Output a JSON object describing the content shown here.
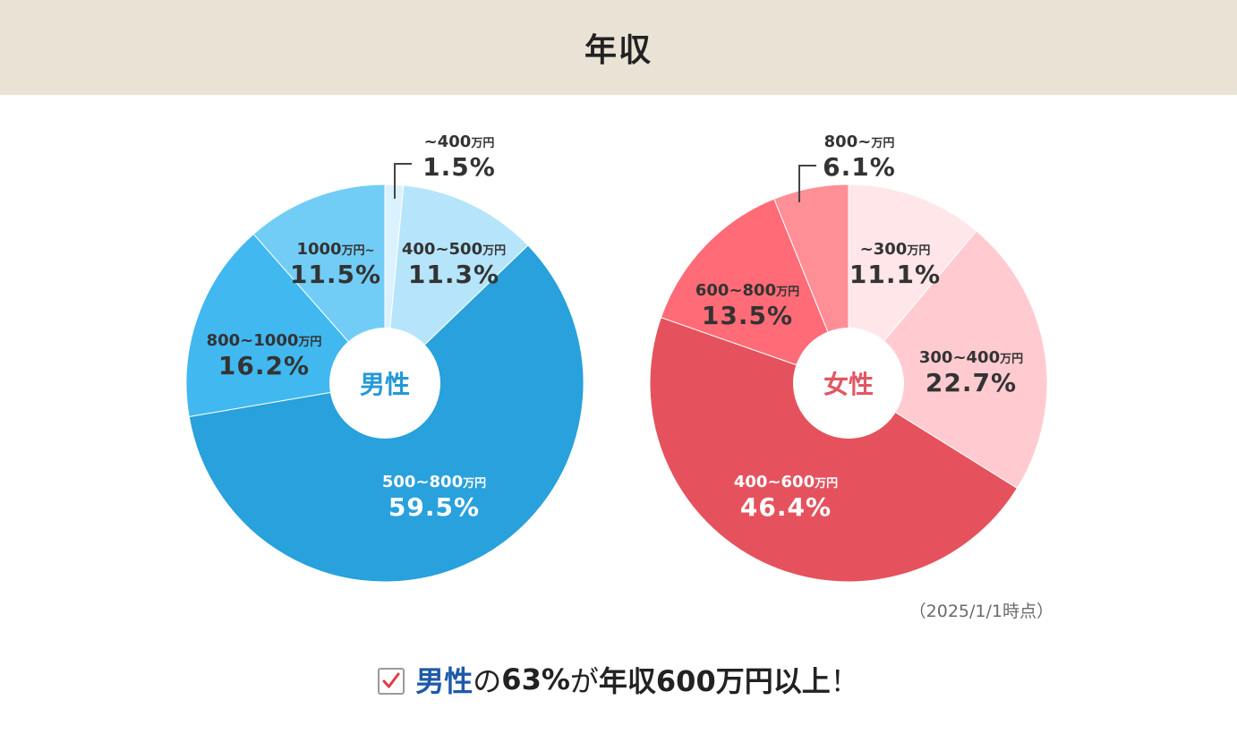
{
  "header": {
    "title": "年収"
  },
  "colors": {
    "header_bg": "#eae3d5",
    "men_center_text": "#2399d6",
    "women_center_text": "#e05763",
    "highlight_text": "#1e5aa8",
    "check_mark": "#e23a4a"
  },
  "chart_data": [
    {
      "type": "pie",
      "center_label": "男性",
      "slices": [
        {
          "range": "~400",
          "unit": "万円",
          "value": 1.5,
          "pct": "1.5%",
          "color": "#daf2fd",
          "label_color": "#333333"
        },
        {
          "range": "400~500",
          "unit": "万円",
          "value": 11.3,
          "pct": "11.3%",
          "color": "#b6e5fb",
          "label_color": "#333333"
        },
        {
          "range": "500~800",
          "unit": "万円",
          "value": 59.5,
          "pct": "59.5%",
          "color": "#28a1dc",
          "label_color": "#ffffff"
        },
        {
          "range": "800~1000",
          "unit": "万円",
          "value": 16.2,
          "pct": "16.2%",
          "color": "#41b8f0",
          "label_color": "#333333"
        },
        {
          "range": "1000",
          "unit": "万円~",
          "value": 11.5,
          "pct": "11.5%",
          "color": "#72cdf6",
          "label_color": "#333333"
        }
      ]
    },
    {
      "type": "pie",
      "center_label": "女性",
      "slices": [
        {
          "range": "~300",
          "unit": "万円",
          "value": 11.1,
          "pct": "11.1%",
          "color": "#ffe6e9",
          "label_color": "#333333"
        },
        {
          "range": "300~400",
          "unit": "万円",
          "value": 22.7,
          "pct": "22.7%",
          "color": "#ffcbd1",
          "label_color": "#333333"
        },
        {
          "range": "400~600",
          "unit": "万円",
          "value": 46.4,
          "pct": "46.4%",
          "color": "#e5525d",
          "label_color": "#ffffff"
        },
        {
          "range": "600~800",
          "unit": "万円",
          "value": 13.5,
          "pct": "13.5%",
          "color": "#ff6b76",
          "label_color": "#333333"
        },
        {
          "range": "800~",
          "unit": "万円",
          "value": 6.1,
          "pct": "6.1%",
          "color": "#ff8f97",
          "label_color": "#333333"
        }
      ]
    }
  ],
  "date_note": "（2025/1/1時点）",
  "summary": {
    "highlight": "男性",
    "particle": "の",
    "stat": "63%",
    "particle2": "が",
    "rest": "年収600万円以上",
    "exclaim": "！"
  }
}
